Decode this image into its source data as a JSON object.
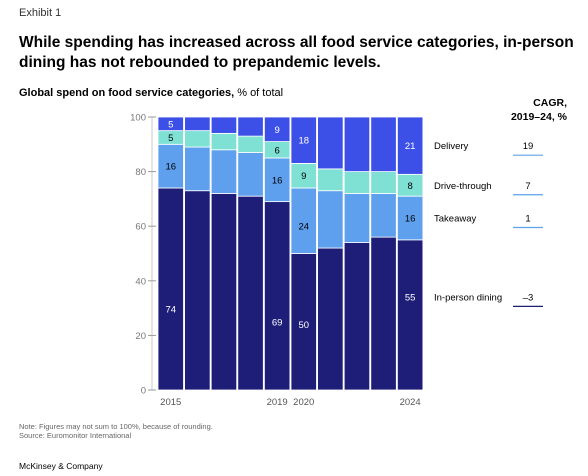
{
  "header": {
    "exhibit": "Exhibit 1",
    "title": "While spending has increased across all food service categories, in-person dining has not rebounded to prepandemic levels.",
    "subtitle_bold": "Global spend on food service categories,",
    "subtitle_rest": " % of total",
    "cagr_line1": "CAGR,",
    "cagr_line2": "2019–24, %"
  },
  "note": {
    "line1": "Note: Figures may not sum to 100%, because of rounding.",
    "line2": "Source: Euromonitor International"
  },
  "footer": {
    "brand": "McKinsey & Company"
  },
  "colors": {
    "in_person": "#1e1e78",
    "takeaway": "#5ea0ee",
    "drive_through": "#7fe0d4",
    "delivery": "#3c50e8"
  },
  "chart_data": {
    "type": "bar",
    "stacked": true,
    "title": "Global spend on food service categories, % of total",
    "ylim": [
      0,
      100
    ],
    "yticks": [
      "0",
      "20",
      "40",
      "60",
      "80",
      "100"
    ],
    "categories": [
      "2015",
      "2016",
      "2017",
      "2018",
      "2019",
      "2020",
      "2021",
      "2022",
      "2023",
      "2024"
    ],
    "xtick_labels": [
      "2015",
      "",
      "",
      "",
      "2019",
      "2020",
      "",
      "",
      "",
      "2024"
    ],
    "series": [
      {
        "name": "In-person dining",
        "color": "#1e1e78",
        "cagr": "–3",
        "values": [
          74,
          73,
          72,
          71,
          69,
          50,
          52,
          54,
          56,
          55
        ],
        "labels": [
          "74",
          "",
          "",
          "",
          "69",
          "50",
          "",
          "",
          "",
          "55"
        ]
      },
      {
        "name": "Takeaway",
        "color": "#5ea0ee",
        "cagr": "1",
        "values": [
          16,
          16,
          16,
          16,
          16,
          24,
          21,
          18,
          16,
          16
        ],
        "labels": [
          "16",
          "",
          "",
          "",
          "16",
          "24",
          "",
          "",
          "",
          "16"
        ]
      },
      {
        "name": "Drive-through",
        "color": "#7fe0d4",
        "cagr": "7",
        "values": [
          5,
          6,
          6,
          6,
          6,
          9,
          8,
          8,
          8,
          8
        ],
        "labels": [
          "5",
          "",
          "",
          "",
          "6",
          "9",
          "",
          "",
          "",
          "8"
        ]
      },
      {
        "name": "Delivery",
        "color": "#3c50e8",
        "cagr": "19",
        "values": [
          5,
          5,
          6,
          7,
          9,
          18,
          19,
          20,
          20,
          21
        ],
        "labels": [
          "5",
          "",
          "",
          "",
          "9",
          "18",
          "",
          "",
          "",
          "21"
        ]
      }
    ]
  }
}
